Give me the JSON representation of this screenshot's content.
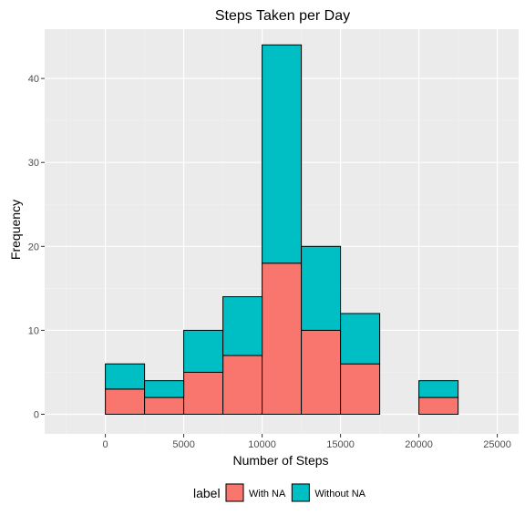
{
  "chart_data": {
    "type": "bar",
    "title": "Steps Taken per Day",
    "xlabel": "Number of Steps",
    "ylabel": "Frequency",
    "stacked": true,
    "bin_width": 2500,
    "bins": [
      -2500,
      0,
      2500,
      5000,
      7500,
      10000,
      12500,
      15000,
      17500,
      20000,
      22500
    ],
    "xlim": [
      -2500,
      25000
    ],
    "ylim": [
      0,
      44
    ],
    "x_ticks": [
      0,
      5000,
      10000,
      15000,
      20000,
      25000
    ],
    "y_ticks": [
      0,
      10,
      20,
      30,
      40
    ],
    "grid": true,
    "legend_position": "bottom",
    "legend_title": "label",
    "series": [
      {
        "name": "With NA",
        "color": "#F8766D",
        "values": [
          0,
          3,
          2,
          5,
          7,
          18,
          10,
          6,
          0,
          2,
          0
        ]
      },
      {
        "name": "Without NA",
        "color": "#00BFC4",
        "values": [
          0,
          3,
          2,
          5,
          7,
          26,
          10,
          6,
          0,
          2,
          0
        ]
      }
    ]
  }
}
